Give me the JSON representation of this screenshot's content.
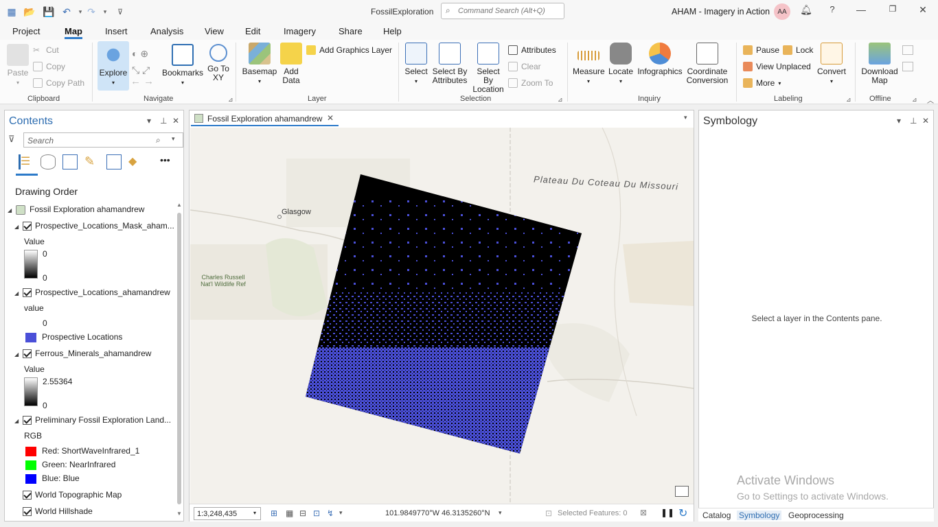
{
  "app": {
    "title": "FossilExploration",
    "command_search_placeholder": "Command Search (Alt+Q)",
    "org_name": "AHAM - Imagery in Action",
    "user_initials": "AA"
  },
  "tabs": [
    "Project",
    "Map",
    "Insert",
    "Analysis",
    "View",
    "Edit",
    "Imagery",
    "Share",
    "Help"
  ],
  "active_tab": "Map",
  "ribbon": {
    "clipboard": {
      "paste": "Paste",
      "cut": "Cut",
      "copy": "Copy",
      "copy_path": "Copy Path",
      "label": "Clipboard"
    },
    "navigate": {
      "explore": "Explore",
      "bookmarks": "Bookmarks",
      "go_to_xy": "Go To XY",
      "label": "Navigate"
    },
    "layer": {
      "basemap": "Basemap",
      "add_data": "Add Data",
      "add_graphics_layer": "Add Graphics Layer",
      "label": "Layer"
    },
    "selection": {
      "select": "Select",
      "select_by_attributes": "Select By Attributes",
      "select_by_location": "Select By Location",
      "attributes": "Attributes",
      "clear": "Clear",
      "zoom_to": "Zoom To",
      "label": "Selection"
    },
    "inquiry": {
      "measure": "Measure",
      "locate": "Locate",
      "infographics": "Infographics",
      "coordinate_conversion": "Coordinate Conversion",
      "label": "Inquiry"
    },
    "labeling": {
      "pause": "Pause",
      "lock": "Lock",
      "view_unplaced": "View Unplaced",
      "more": "More",
      "convert": "Convert",
      "label": "Labeling"
    },
    "offline": {
      "download_map": "Download Map",
      "label": "Offline"
    }
  },
  "contents": {
    "title": "Contents",
    "search_placeholder": "Search",
    "drawing_order": "Drawing Order",
    "map_name": "Fossil Exploration ahamandrew",
    "layers": [
      {
        "name": "Prospective_Locations_Mask_aham...",
        "legend_title": "Value",
        "high": "0",
        "low": "0"
      },
      {
        "name": "Prospective_Locations_ahamandrew",
        "legend_title": "value",
        "value0": "0",
        "class_label": "Prospective Locations",
        "class_color": "#4a4fd8"
      },
      {
        "name": "Ferrous_Minerals_ahamandrew",
        "legend_title": "Value",
        "high": "2.55364",
        "low": "0"
      },
      {
        "name": "Preliminary Fossil Exploration Land...",
        "legend_title": "RGB",
        "red": "Red:  ShortWaveInfrared_1",
        "green": "Green: NearInfrared",
        "blue": "Blue:  Blue"
      },
      {
        "name": "World Topographic Map"
      },
      {
        "name": "World Hillshade"
      }
    ]
  },
  "map": {
    "tab_title": "Fossil Exploration ahamandrew",
    "labels": {
      "plateau": "Plateau Du Coteau Du Missouri",
      "glasgow": "Glasgow",
      "refuge": "Charles Russell Nat'l Wildlife Ref"
    },
    "scale": "1:3,248,435",
    "coordinates": "101.9849770°W 46.3135260°N",
    "selected_features": "Selected Features: 0"
  },
  "symbology": {
    "title": "Symbology",
    "message": "Select a layer in the Contents pane.",
    "bottom_tabs": [
      "Catalog",
      "Symbology",
      "Geoprocessing"
    ],
    "active_bottom_tab": "Symbology"
  },
  "watermark": {
    "line1": "Activate Windows",
    "line2": "Go to Settings to activate Windows."
  },
  "colors": {
    "accent": "#2c7ac9",
    "prospective_blue": "#4a4fd8",
    "red": "#ff0000",
    "green": "#00ff00",
    "blue": "#0000ff"
  }
}
